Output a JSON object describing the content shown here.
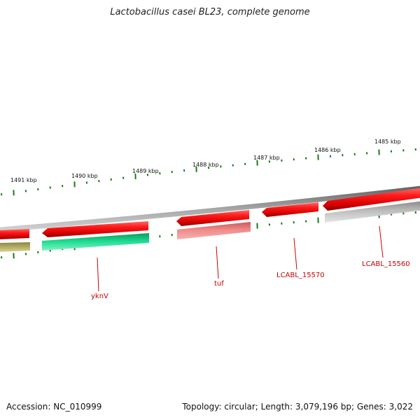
{
  "title": "Lactobacillus casei BL23, complete genome",
  "footer": {
    "accession": "Accession: NC_010999",
    "stats": "Topology: circular; Length: 3,079,196 bp; Genes: 3,022"
  },
  "ruler_labels": [
    "1491 kbp",
    "1490 kbp",
    "1489 kbp",
    "1488 kbp",
    "1487 kbp",
    "1486 kbp",
    "1485 kbp"
  ],
  "gene_labels": [
    "yknV",
    "tuf",
    "LCABL_15570",
    "LCABL_15560"
  ],
  "colors": {
    "forward_gene": "#ee0000",
    "tuf_gene": "#f08a8a",
    "yknV_gene": "#1bd98f",
    "olive_gene": "#b4ad66",
    "grey_gene": "#bdbdbd",
    "ruler_tick": "#1a7a1a",
    "backbone": "#8c8c8c",
    "label_red": "#cc0000"
  }
}
